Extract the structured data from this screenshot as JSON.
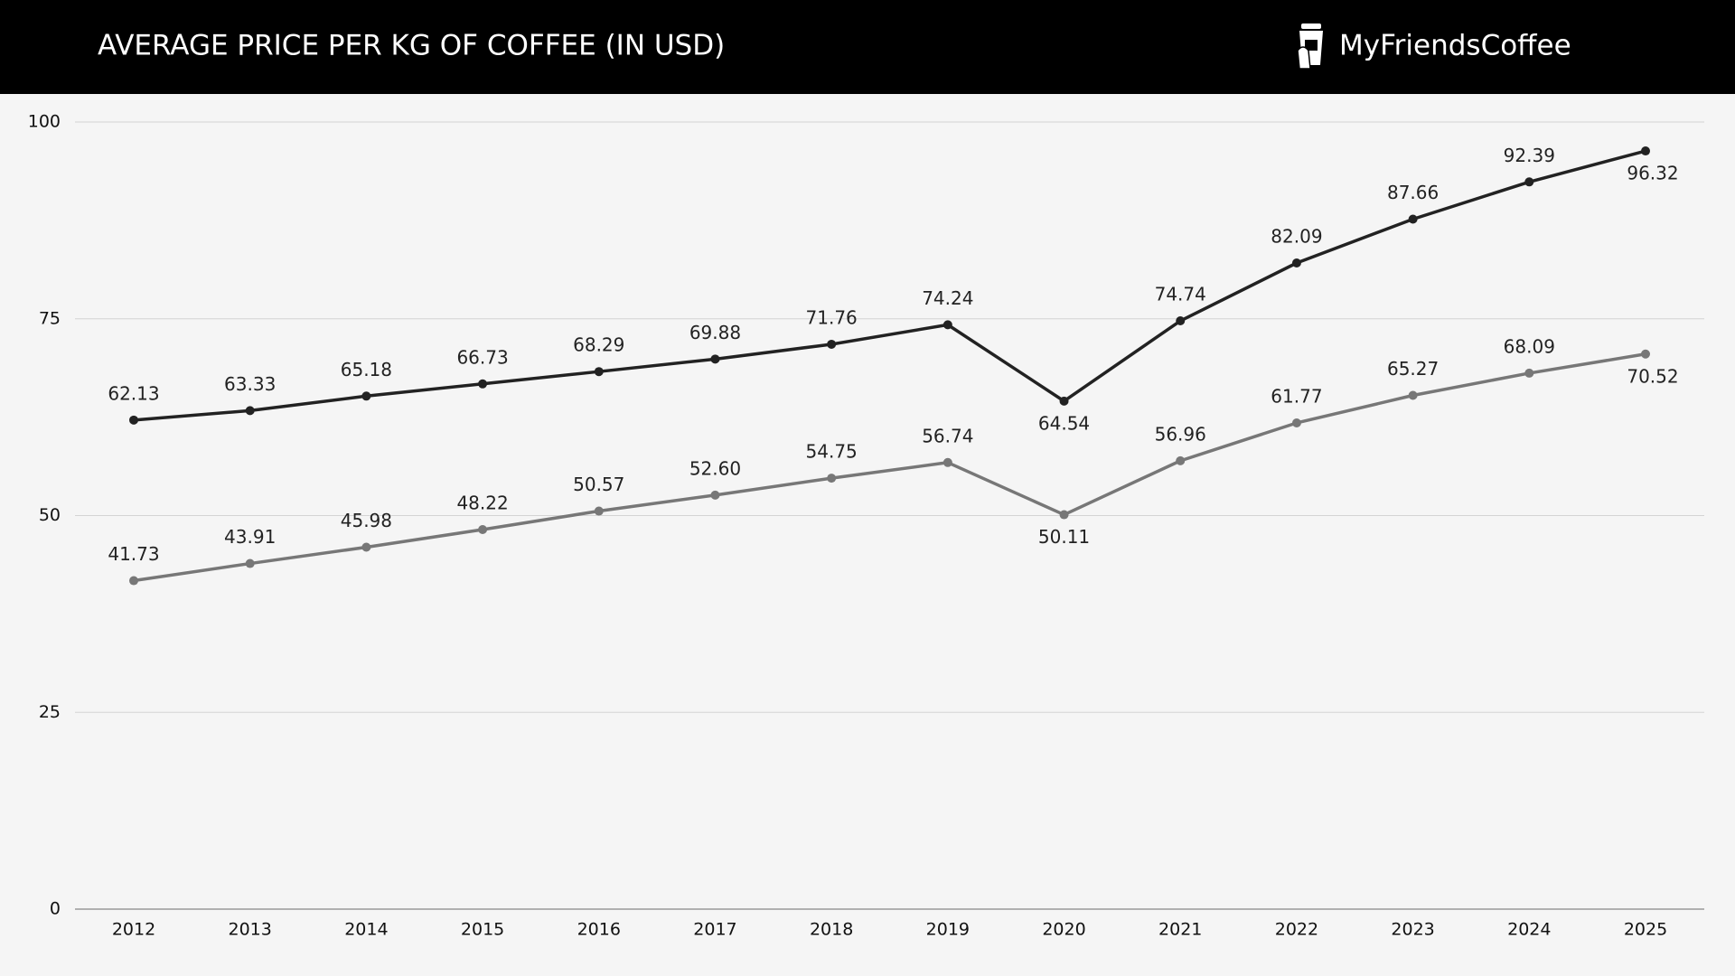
{
  "chart_data": {
    "type": "line",
    "title": "AVERAGE PRICE PER KG OF COFFEE (IN USD)",
    "brand": "MyFriendsCoffee",
    "categories": [
      "2012",
      "2013",
      "2014",
      "2015",
      "2016",
      "2017",
      "2018",
      "2019",
      "2020",
      "2021",
      "2022",
      "2023",
      "2024",
      "2025"
    ],
    "series": [
      {
        "color": "#222222",
        "values": [
          62.13,
          63.33,
          65.18,
          66.73,
          68.29,
          69.88,
          71.76,
          74.24,
          64.54,
          74.74,
          82.09,
          87.66,
          92.39,
          96.32
        ],
        "value_labels": [
          "62.13",
          "63.33",
          "65.18",
          "66.73",
          "68.29",
          "69.88",
          "71.76",
          "74.24",
          "64.54",
          "74.74",
          "82.09",
          "87.66",
          "92.39",
          "96.32"
        ]
      },
      {
        "color": "#777777",
        "values": [
          41.73,
          43.91,
          45.98,
          48.22,
          50.57,
          52.6,
          54.75,
          56.74,
          50.11,
          56.96,
          61.77,
          65.27,
          68.09,
          70.52
        ],
        "value_labels": [
          "41.73",
          "43.91",
          "45.98",
          "48.22",
          "50.57",
          "52.60",
          "54.75",
          "56.74",
          "50.11",
          "56.96",
          "61.77",
          "65.27",
          "68.09",
          "70.52"
        ]
      }
    ],
    "ylim": [
      0,
      100
    ],
    "yticks": [
      0,
      25,
      50,
      75,
      100
    ],
    "grid": true
  }
}
